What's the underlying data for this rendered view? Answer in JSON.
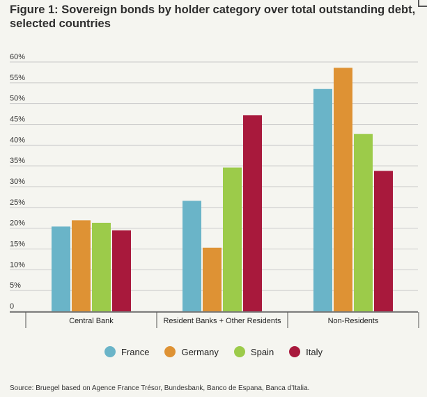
{
  "header": {
    "title": "Figure 1: Sovereign bonds by holder category over total outstanding debt, selected countries"
  },
  "chart_data": {
    "type": "bar",
    "title": "Figure 1: Sovereign bonds by holder category over total outstanding debt, selected countries",
    "xlabel": "",
    "ylabel": "",
    "ylim": [
      0,
      60
    ],
    "yticks": [
      "0",
      "5%",
      "10%",
      "15%",
      "20%",
      "25%",
      "30%",
      "35%",
      "40%",
      "45%",
      "50%",
      "55%",
      "60%"
    ],
    "categories": [
      "Central Bank",
      "Resident Banks + Other Residents",
      "Non-Residents"
    ],
    "series": [
      {
        "name": "France",
        "color": "#6ab4c8",
        "values": [
          20.4,
          26.6,
          53.5
        ]
      },
      {
        "name": "Germany",
        "color": "#de9234",
        "values": [
          21.9,
          15.3,
          58.6
        ]
      },
      {
        "name": "Spain",
        "color": "#9ccb4a",
        "values": [
          21.3,
          34.6,
          42.7
        ]
      },
      {
        "name": "Italy",
        "color": "#a8193c",
        "values": [
          19.5,
          47.2,
          33.8
        ]
      }
    ],
    "grid": true,
    "legend": "bottom"
  },
  "footer": {
    "source": "Source: Bruegel based on Agence France Trésor, Bundesbank, Banco de Espana, Banca d’Italia."
  },
  "icons": {
    "corner": "expand-icon"
  }
}
